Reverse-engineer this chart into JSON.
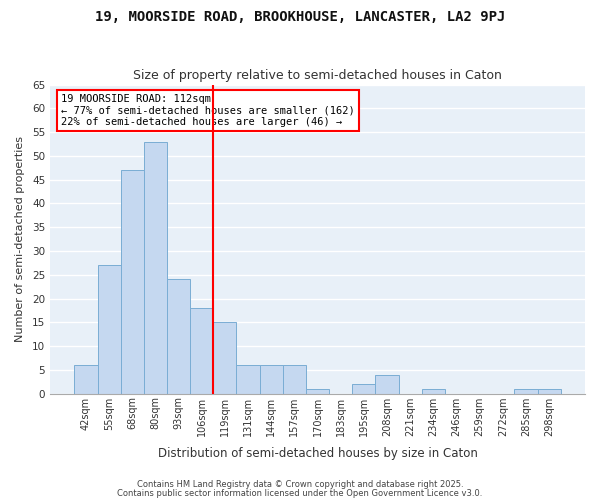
{
  "title1": "19, MOORSIDE ROAD, BROOKHOUSE, LANCASTER, LA2 9PJ",
  "title2": "Size of property relative to semi-detached houses in Caton",
  "xlabel": "Distribution of semi-detached houses by size in Caton",
  "ylabel": "Number of semi-detached properties",
  "annotation_title": "19 MOORSIDE ROAD: 112sqm",
  "annotation_line1": "← 77% of semi-detached houses are smaller (162)",
  "annotation_line2": "22% of semi-detached houses are larger (46) →",
  "bin_labels": [
    "42sqm",
    "55sqm",
    "68sqm",
    "80sqm",
    "93sqm",
    "106sqm",
    "119sqm",
    "131sqm",
    "144sqm",
    "157sqm",
    "170sqm",
    "183sqm",
    "195sqm",
    "208sqm",
    "221sqm",
    "234sqm",
    "246sqm",
    "259sqm",
    "272sqm",
    "285sqm",
    "298sqm"
  ],
  "bar_values": [
    6,
    27,
    47,
    53,
    24,
    18,
    15,
    6,
    6,
    6,
    1,
    0,
    2,
    4,
    0,
    1,
    0,
    0,
    0,
    1,
    1
  ],
  "bar_color": "#c5d8f0",
  "bar_edge_color": "#7aadd4",
  "red_line_x": 6.0,
  "background_color": "#ffffff",
  "plot_bg_color": "#e8f0f8",
  "grid_color": "#ffffff",
  "ylim": [
    0,
    65
  ],
  "yticks": [
    0,
    5,
    10,
    15,
    20,
    25,
    30,
    35,
    40,
    45,
    50,
    55,
    60,
    65
  ],
  "footer1": "Contains HM Land Registry data © Crown copyright and database right 2025.",
  "footer2": "Contains public sector information licensed under the Open Government Licence v3.0."
}
